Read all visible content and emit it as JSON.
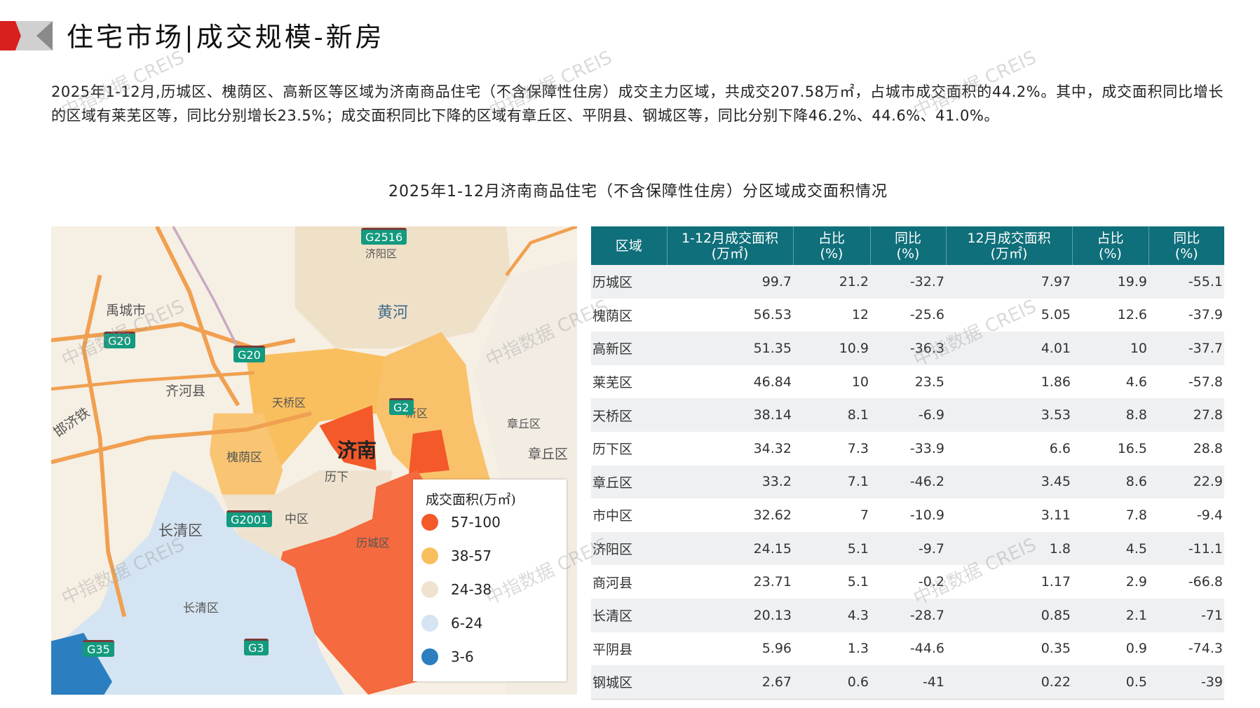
{
  "header": {
    "title": "住宅市场|成交规模-新房"
  },
  "summary": "2025年1-12月,历城区、槐荫区、高新区等区域为济南商品住宅（不含保障性住房）成交主力区域，共成交207.58万㎡，占城市成交面积的44.2%。其中，成交面积同比增长的区域有莱芜区等，同比分别增长23.5%；成交面积同比下降的区域有章丘区、平阴县、钢城区等，同比分别下降46.2%、44.6%、41.0%。",
  "chart_title": "2025年1-12月济南商品住宅（不含保障性住房）分区域成交面积情况",
  "watermark": "中指数据 CREIS",
  "colors": {
    "accent": "#d7201f",
    "table_header": "#0f6f7a"
  },
  "map": {
    "labels": {
      "yucheng": "禹城市",
      "huanghe": "黄河",
      "qihe": "齐河县",
      "tianqiao": "天桥区",
      "jinan": "济南",
      "huaiyin": "槐荫区",
      "lixia": "历下",
      "shizhong": "中区",
      "changqing": "长清区",
      "changqing2": "长清区",
      "licheng": "历城区",
      "zhangqiu": "章丘区",
      "zhangqiu2": "章丘区",
      "gaoxin": "新区",
      "jiyang": "济阳区",
      "hanji": "邯济铁"
    },
    "shields": [
      "G2516",
      "G20",
      "G20",
      "G2",
      "G2001",
      "G35",
      "G3"
    ],
    "legend": {
      "title": "成交面积(万㎡)",
      "items": [
        {
          "label": "57-100",
          "color": "#f4592a"
        },
        {
          "label": "38-57",
          "color": "#f9bf5e"
        },
        {
          "label": "24-38",
          "color": "#efe3cf"
        },
        {
          "label": "6-24",
          "color": "#d4e4f2"
        },
        {
          "label": "3-6",
          "color": "#2b7fc0"
        }
      ]
    }
  },
  "table": {
    "headers": [
      [
        "区域",
        ""
      ],
      [
        "1-12月成交面积",
        "(万㎡)"
      ],
      [
        "占比",
        "(%)"
      ],
      [
        "同比",
        "(%)"
      ],
      [
        "12月成交面积",
        "(万㎡)"
      ],
      [
        "占比",
        "(%)"
      ],
      [
        "同比",
        "(%)"
      ]
    ],
    "rows": [
      [
        "历城区",
        "99.7",
        "21.2",
        "-32.7",
        "7.97",
        "19.9",
        "-55.1"
      ],
      [
        "槐荫区",
        "56.53",
        "12",
        "-25.6",
        "5.05",
        "12.6",
        "-37.9"
      ],
      [
        "高新区",
        "51.35",
        "10.9",
        "-36.3",
        "4.01",
        "10",
        "-37.7"
      ],
      [
        "莱芜区",
        "46.84",
        "10",
        "23.5",
        "1.86",
        "4.6",
        "-57.8"
      ],
      [
        "天桥区",
        "38.14",
        "8.1",
        "-6.9",
        "3.53",
        "8.8",
        "27.8"
      ],
      [
        "历下区",
        "34.32",
        "7.3",
        "-33.9",
        "6.6",
        "16.5",
        "28.8"
      ],
      [
        "章丘区",
        "33.2",
        "7.1",
        "-46.2",
        "3.45",
        "8.6",
        "22.9"
      ],
      [
        "市中区",
        "32.62",
        "7",
        "-10.9",
        "3.11",
        "7.8",
        "-9.4"
      ],
      [
        "济阳区",
        "24.15",
        "5.1",
        "-9.7",
        "1.8",
        "4.5",
        "-11.1"
      ],
      [
        "商河县",
        "23.71",
        "5.1",
        "-0.2",
        "1.17",
        "2.9",
        "-66.8"
      ],
      [
        "长清区",
        "20.13",
        "4.3",
        "-28.7",
        "0.85",
        "2.1",
        "-71"
      ],
      [
        "平阴县",
        "5.96",
        "1.3",
        "-44.6",
        "0.35",
        "0.9",
        "-74.3"
      ],
      [
        "钢城区",
        "2.67",
        "0.6",
        "-41",
        "0.22",
        "0.5",
        "-39"
      ]
    ]
  }
}
